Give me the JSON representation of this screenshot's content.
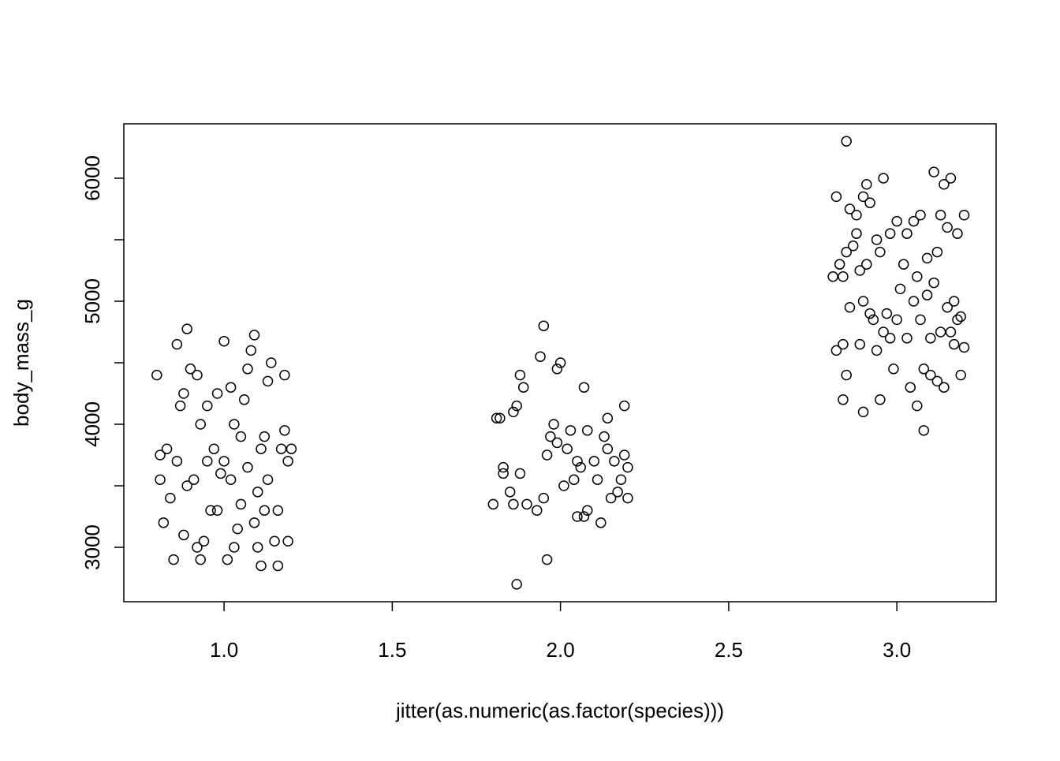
{
  "chart_data": {
    "type": "scatter",
    "xlabel": "jitter(as.numeric(as.factor(species)))",
    "ylabel": "body_mass_g",
    "xlim": [
      0.702,
      3.295
    ],
    "ylim": [
      2558,
      6442
    ],
    "xticks": [
      {
        "value": 1,
        "label": "1.0"
      },
      {
        "value": 1.5,
        "label": "1.5"
      },
      {
        "value": 2,
        "label": "2.0"
      },
      {
        "value": 2.5,
        "label": "2.5"
      },
      {
        "value": 3,
        "label": "3.0"
      }
    ],
    "yticks": [
      3000,
      {
        "value": 3500,
        "label": null
      },
      4000,
      {
        "value": 4500,
        "label": null
      },
      5000,
      {
        "value": 5500,
        "label": null
      },
      6000
    ],
    "color": "#000000",
    "x": [
      0.8,
      0.81,
      0.81,
      0.82,
      0.83,
      0.84,
      0.85,
      0.86,
      0.86,
      0.87,
      0.88,
      0.88,
      0.89,
      0.89,
      0.9,
      0.91,
      0.92,
      0.93,
      0.93,
      0.94,
      0.95,
      0.96,
      0.97,
      0.98,
      0.99,
      1.0,
      1.0,
      1.01,
      1.02,
      1.02,
      1.03,
      1.03,
      1.04,
      1.05,
      1.06,
      1.07,
      1.07,
      1.08,
      1.09,
      1.09,
      1.1,
      1.1,
      1.11,
      1.11,
      1.12,
      1.13,
      1.13,
      1.14,
      1.15,
      1.16,
      1.16,
      1.17,
      1.18,
      1.18,
      1.19,
      1.2,
      1.19,
      0.98,
      1.05,
      0.92,
      1.12,
      0.95,
      1.8,
      1.81,
      1.82,
      1.83,
      1.83,
      1.85,
      1.86,
      1.86,
      1.87,
      1.87,
      1.88,
      1.88,
      1.89,
      1.9,
      1.93,
      1.94,
      1.95,
      1.95,
      1.96,
      1.96,
      1.97,
      1.98,
      1.99,
      1.99,
      2.0,
      2.01,
      2.02,
      2.03,
      2.04,
      2.05,
      2.05,
      2.06,
      2.07,
      2.07,
      2.08,
      2.08,
      2.1,
      2.11,
      2.12,
      2.13,
      2.14,
      2.14,
      2.15,
      2.16,
      2.17,
      2.18,
      2.19,
      2.19,
      2.2,
      2.2,
      2.81,
      2.82,
      2.82,
      2.83,
      2.84,
      2.84,
      2.84,
      2.85,
      2.85,
      2.85,
      2.86,
      2.86,
      2.87,
      2.88,
      2.88,
      2.89,
      2.89,
      2.9,
      2.9,
      2.9,
      2.91,
      2.91,
      2.92,
      2.92,
      2.93,
      2.94,
      2.94,
      2.95,
      2.95,
      2.96,
      2.96,
      2.97,
      2.98,
      2.98,
      2.99,
      3.0,
      3.0,
      3.01,
      3.02,
      3.03,
      3.03,
      3.04,
      3.05,
      3.05,
      3.06,
      3.06,
      3.07,
      3.07,
      3.08,
      3.08,
      3.09,
      3.09,
      3.1,
      3.1,
      3.11,
      3.11,
      3.12,
      3.12,
      3.13,
      3.13,
      3.14,
      3.14,
      3.15,
      3.15,
      3.16,
      3.16,
      3.17,
      3.17,
      3.18,
      3.18,
      3.19,
      3.2,
      3.2,
      3.19
    ],
    "values": [
      4400,
      3750,
      3550,
      3200,
      3800,
      3400,
      2900,
      4650,
      3700,
      4150,
      3100,
      4250,
      4775,
      3500,
      4450,
      3550,
      4400,
      2900,
      4000,
      3050,
      3700,
      3300,
      3800,
      4250,
      3600,
      4675,
      3700,
      2900,
      4300,
      3550,
      4000,
      3000,
      3150,
      3900,
      4200,
      4450,
      3650,
      4600,
      4725,
      3200,
      3450,
      3000,
      2850,
      3800,
      3300,
      4350,
      3550,
      4500,
      3050,
      2850,
      3300,
      3800,
      4400,
      3950,
      3700,
      3800,
      3050,
      3300,
      3350,
      3000,
      3900,
      4150,
      3350,
      4050,
      4050,
      3600,
      3650,
      3450,
      4100,
      3350,
      4150,
      2700,
      4400,
      3600,
      4300,
      3350,
      3300,
      4550,
      4800,
      3400,
      2900,
      3750,
      3900,
      4000,
      4450,
      3850,
      4500,
      3500,
      3800,
      3950,
      3550,
      3250,
      3700,
      3650,
      4300,
      3250,
      3950,
      3300,
      3700,
      3550,
      3200,
      3900,
      4050,
      3800,
      3400,
      3700,
      3450,
      3550,
      4150,
      3750,
      3400,
      3650,
      5200,
      5850,
      4600,
      5300,
      4200,
      5200,
      4650,
      6300,
      5400,
      4400,
      5750,
      4950,
      5450,
      5550,
      5700,
      5250,
      4650,
      5850,
      5000,
      4100,
      5950,
      5300,
      5800,
      4900,
      4850,
      5500,
      4600,
      5400,
      4200,
      6000,
      4750,
      4900,
      5550,
      4700,
      4450,
      5650,
      4850,
      5100,
      5300,
      4700,
      5550,
      4300,
      5650,
      5000,
      4150,
      5200,
      4850,
      5700,
      4450,
      3950,
      5050,
      5350,
      4700,
      4400,
      6050,
      5150,
      5400,
      4350,
      5700,
      4750,
      5950,
      4300,
      5600,
      4950,
      6000,
      4750,
      5000,
      4650,
      5550,
      4850,
      4400,
      5700,
      4625,
      4875
    ]
  }
}
